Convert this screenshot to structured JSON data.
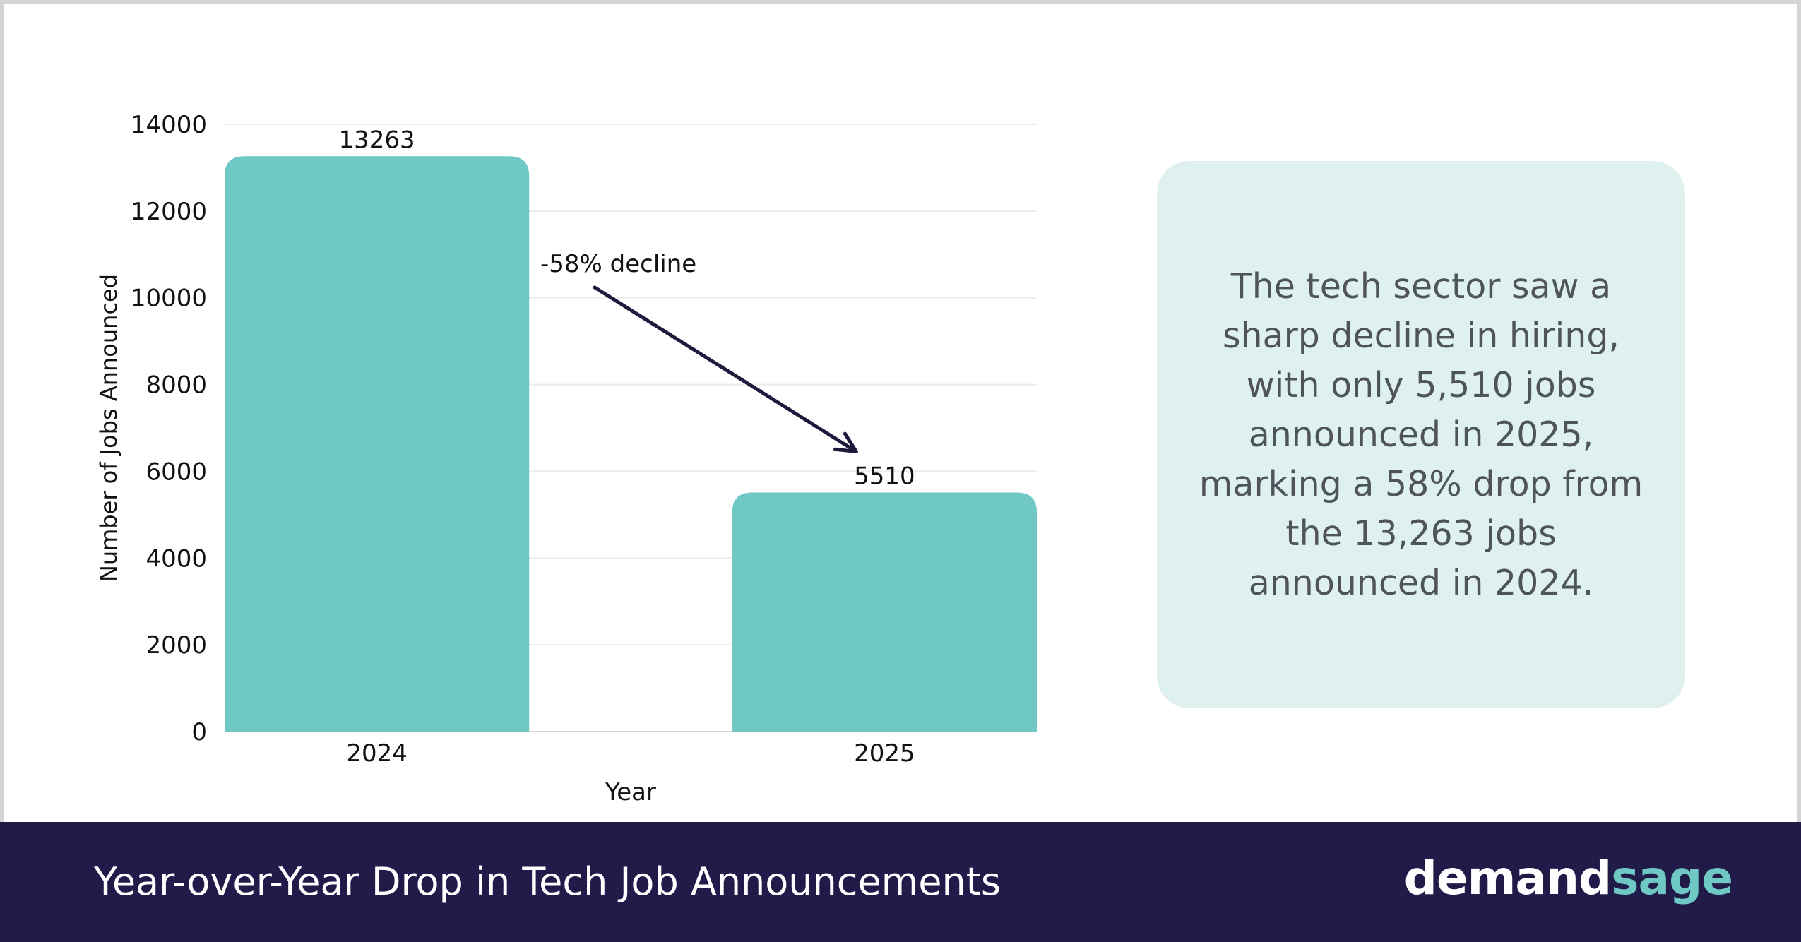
{
  "chart_data": {
    "type": "bar",
    "categories": [
      "2024",
      "2025"
    ],
    "values": [
      13263,
      5510
    ],
    "data_labels": [
      "13263",
      "5510"
    ],
    "xlabel": "Year",
    "ylabel": "Number of Jobs Announced",
    "ylim": [
      0,
      14000
    ],
    "yticks": [
      "0",
      "2000",
      "4000",
      "6000",
      "8000",
      "10000",
      "12000",
      "14000"
    ],
    "grid": true,
    "legend": "none",
    "bar_color": "#6fc8c3",
    "annotation": "-58% decline"
  },
  "info_card": {
    "lines": [
      "The tech sector saw a",
      "sharp decline in hiring,",
      "with only 5,510 jobs",
      "announced in 2025,",
      "marking a 58% drop from",
      "the 13,263 jobs",
      "announced in 2024."
    ]
  },
  "footer": {
    "title": "Year-over-Year Drop in Tech Job Announcements",
    "brand_part1": "demand",
    "brand_part2": "sage"
  },
  "colors": {
    "footer_bg": "#211b49",
    "card_bg": "#dff1ef",
    "brand_accent": "#6fc8c3",
    "arrow": "#1e1a3d"
  }
}
